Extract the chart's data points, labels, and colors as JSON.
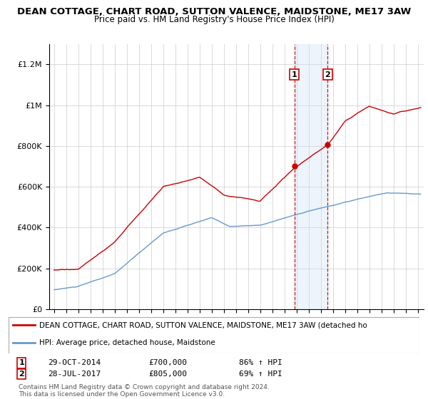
{
  "title": "DEAN COTTAGE, CHART ROAD, SUTTON VALENCE, MAIDSTONE, ME17 3AW",
  "subtitle": "Price paid vs. HM Land Registry's House Price Index (HPI)",
  "title_fontsize": 9.5,
  "subtitle_fontsize": 8.5,
  "ylim": [
    0,
    1300000
  ],
  "yticks": [
    0,
    200000,
    400000,
    600000,
    800000,
    1000000,
    1200000
  ],
  "ytick_labels": [
    "£0",
    "£200K",
    "£400K",
    "£600K",
    "£800K",
    "£1M",
    "£1.2M"
  ],
  "xlim_start": 1994.6,
  "xlim_end": 2025.5,
  "transaction1_x": 2014.83,
  "transaction1_y": 700000,
  "transaction1_label": "1",
  "transaction2_x": 2017.58,
  "transaction2_y": 805000,
  "transaction2_label": "2",
  "legend_line1": "DEAN COTTAGE, CHART ROAD, SUTTON VALENCE, MAIDSTONE, ME17 3AW (detached ho",
  "legend_line2": "HPI: Average price, detached house, Maidstone",
  "note_line1": "Contains HM Land Registry data © Crown copyright and database right 2024.",
  "note_line2": "This data is licensed under the Open Government Licence v3.0.",
  "table_row1": [
    "1",
    "29-OCT-2014",
    "£700,000",
    "86% ↑ HPI"
  ],
  "table_row2": [
    "2",
    "28-JUL-2017",
    "£805,000",
    "69% ↑ HPI"
  ],
  "red_color": "#cc0000",
  "blue_color": "#6699cc",
  "shade_color": "#cce0f5",
  "grid_color": "#cccccc",
  "background_color": "#ffffff"
}
